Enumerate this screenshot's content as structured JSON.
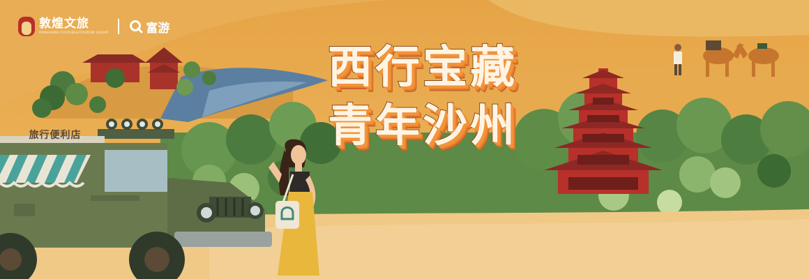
{
  "brand": {
    "name": "敦煌文旅",
    "subtitle": "DUNHUANG CULTURE&TOURISM GROUP",
    "partner": "富游",
    "logo_icon": "dunhuang-arch-logo",
    "partner_icon": "q-search-logo"
  },
  "headline": {
    "line1": "西行宝藏",
    "line2": "青年沙州"
  },
  "jeep": {
    "sign": "旅行便利店"
  },
  "colors": {
    "background": "#e9ae52",
    "title_fill": "#fff4e4",
    "title_shadow": "#f2943a",
    "pagoda_red": "#b8302a"
  }
}
